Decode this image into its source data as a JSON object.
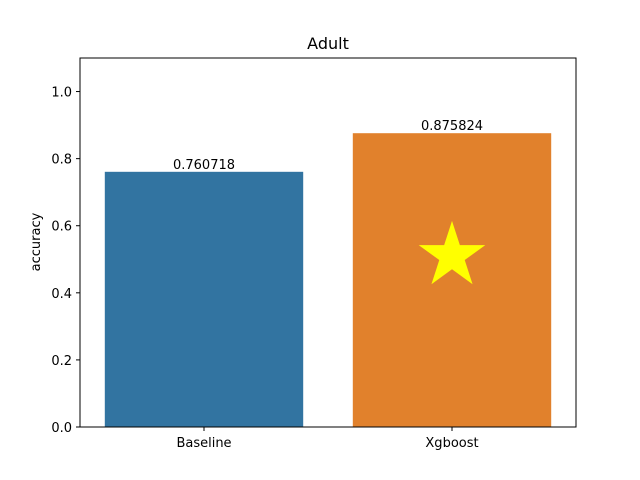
{
  "chart_data": {
    "type": "bar",
    "title": "Adult",
    "xlabel": "",
    "ylabel": "accuracy",
    "categories": [
      "Baseline",
      "Xgboost"
    ],
    "values": [
      0.760718,
      0.875824
    ],
    "data_labels": [
      "0.760718",
      "0.875824"
    ],
    "bar_colors": [
      "#3274a1",
      "#e1812c"
    ],
    "ylim": [
      0,
      1.1
    ],
    "yticks": [
      0.0,
      0.2,
      0.4,
      0.6,
      0.8,
      1.0
    ],
    "ytick_labels": [
      "0.0",
      "0.2",
      "0.4",
      "0.6",
      "0.8",
      "1.0"
    ],
    "grid": false,
    "legend": "none",
    "marker": {
      "shape": "star",
      "color": "#ffff00",
      "category": "Xgboost",
      "y": 0.51
    }
  }
}
